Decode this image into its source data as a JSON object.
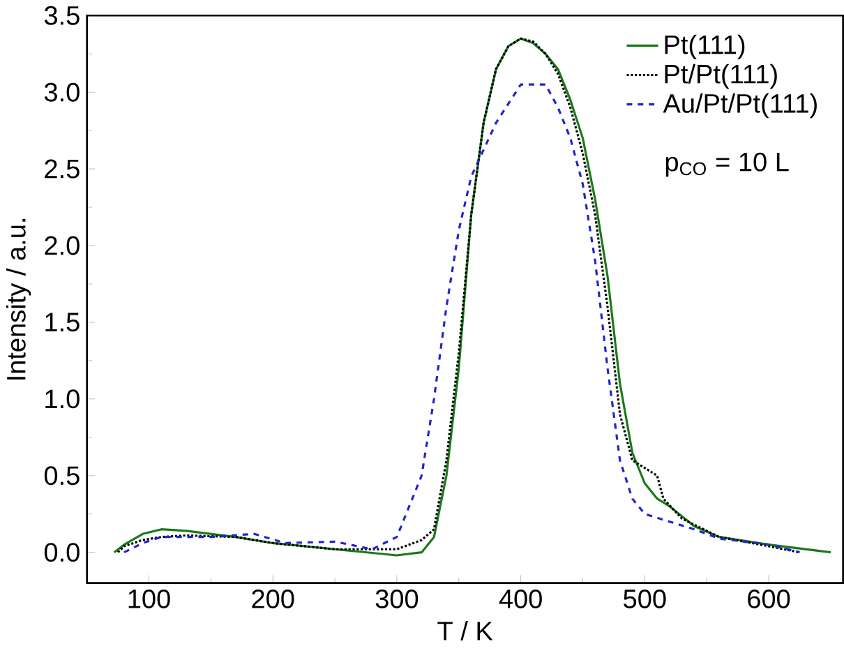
{
  "chart_data": {
    "type": "line",
    "xlabel": "T / K",
    "ylabel": "Intensity / a.u.",
    "xlim": [
      50,
      660
    ],
    "ylim": [
      -0.2,
      3.5
    ],
    "xticks": [
      100,
      200,
      300,
      400,
      500,
      600
    ],
    "yticks": [
      {
        "value": 0,
        "label": "0.0"
      },
      0.5,
      {
        "value": 1,
        "label": "1.0"
      },
      1.5,
      {
        "value": 2,
        "label": "2.0"
      },
      2.5,
      {
        "value": 3,
        "label": "3.0"
      },
      3.5
    ],
    "legend": "top right",
    "grid": false,
    "annotations": [
      "p$_{CO}$ = 10 L"
    ],
    "series": [
      {
        "name": "Pt(111)",
        "color": "#1a7a1a",
        "line_style": "solid",
        "x": [
          72,
          80,
          95,
          110,
          130,
          170,
          200,
          250,
          300,
          320,
          330,
          340,
          350,
          360,
          370,
          380,
          390,
          400,
          410,
          420,
          430,
          440,
          450,
          460,
          470,
          480,
          490,
          500,
          510,
          520,
          540,
          560,
          600,
          650
        ],
        "values": [
          0.0,
          0.05,
          0.12,
          0.15,
          0.14,
          0.1,
          0.06,
          0.02,
          -0.02,
          0.0,
          0.1,
          0.5,
          1.2,
          2.2,
          2.8,
          3.15,
          3.3,
          3.35,
          3.32,
          3.25,
          3.15,
          2.95,
          2.7,
          2.3,
          1.8,
          1.1,
          0.65,
          0.45,
          0.35,
          0.3,
          0.17,
          0.1,
          0.05,
          0.0
        ]
      },
      {
        "name": "Pt/Pt(111)",
        "color": "#000000",
        "line_style": "dotted",
        "x": [
          75,
          80,
          95,
          110,
          130,
          170,
          200,
          250,
          300,
          320,
          330,
          340,
          350,
          360,
          370,
          380,
          390,
          400,
          410,
          420,
          430,
          440,
          450,
          460,
          470,
          480,
          490,
          500,
          510,
          515,
          530,
          560,
          600,
          625
        ],
        "values": [
          0.0,
          0.04,
          0.08,
          0.1,
          0.11,
          0.1,
          0.06,
          0.02,
          0.02,
          0.08,
          0.15,
          0.6,
          1.3,
          2.2,
          2.8,
          3.15,
          3.3,
          3.35,
          3.33,
          3.25,
          3.12,
          2.9,
          2.6,
          2.2,
          1.6,
          0.9,
          0.6,
          0.55,
          0.5,
          0.35,
          0.22,
          0.1,
          0.04,
          0.0
        ]
      },
      {
        "name": "Au/Pt/Pt(111)",
        "color": "#2424c8",
        "line_style": "dashed",
        "x": [
          80,
          95,
          110,
          150,
          185,
          210,
          250,
          280,
          300,
          320,
          330,
          340,
          350,
          360,
          380,
          400,
          420,
          430,
          440,
          450,
          460,
          470,
          480,
          490,
          500,
          520,
          540,
          560,
          600,
          625
        ],
        "values": [
          0.0,
          0.06,
          0.1,
          0.1,
          0.12,
          0.06,
          0.07,
          0.02,
          0.1,
          0.5,
          1.0,
          1.6,
          2.1,
          2.45,
          2.8,
          3.05,
          3.05,
          2.9,
          2.7,
          2.4,
          1.9,
          1.2,
          0.6,
          0.35,
          0.25,
          0.2,
          0.15,
          0.09,
          0.05,
          0.0
        ]
      }
    ]
  }
}
